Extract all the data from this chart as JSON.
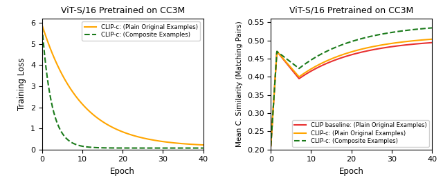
{
  "left_title": "ViT-S/16 Pretrained on CC3M",
  "left_xlabel": "Epoch",
  "left_ylabel": "Training Loss",
  "left_xlim": [
    0,
    40
  ],
  "left_ylim": [
    0,
    6.2
  ],
  "left_yticks": [
    0,
    1,
    2,
    3,
    4,
    5,
    6
  ],
  "left_xticks": [
    0,
    10,
    20,
    30,
    40
  ],
  "right_title": "ViT-S/16 Pretrained on CC3M",
  "right_xlabel": "Epoch",
  "right_ylabel": "Mean C. Similarity (Matching Pairs)",
  "right_xlim": [
    0,
    40
  ],
  "right_ylim": [
    0.2,
    0.56
  ],
  "right_yticks": [
    0.2,
    0.25,
    0.3,
    0.35,
    0.4,
    0.45,
    0.5,
    0.55
  ],
  "right_xticks": [
    0,
    10,
    20,
    30,
    40
  ],
  "orange_color": "#FFA500",
  "green_color": "#1a7a1a",
  "red_color": "#e83030",
  "left_legend": [
    {
      "label": "CLIP-c: (Plain Original Examples)",
      "color": "#FFA500",
      "linestyle": "solid"
    },
    {
      "label": "CLIP-c: (Composite Examples)",
      "color": "#1a7a1a",
      "linestyle": "dashed"
    }
  ],
  "right_legend": [
    {
      "label": "CLIP baseline: (Plain Original Examples)",
      "color": "#e83030",
      "linestyle": "solid"
    },
    {
      "label": "CLIP-c: (Plain Original Examples)",
      "color": "#FFA500",
      "linestyle": "solid"
    },
    {
      "label": "CLIP-c: (Composite Examples)",
      "color": "#1a7a1a",
      "linestyle": "dashed"
    }
  ]
}
